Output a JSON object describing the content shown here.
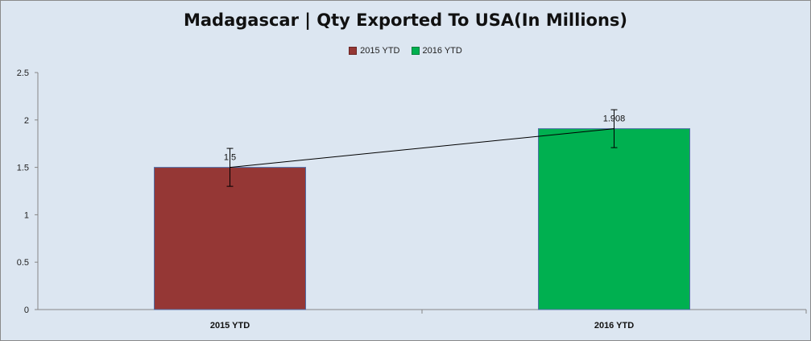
{
  "chart_data": {
    "type": "bar",
    "title": "Madagascar | Qty Exported To USA(In Millions)",
    "categories": [
      "2015 YTD",
      "2016 YTD"
    ],
    "values": [
      1.5,
      1.908
    ],
    "data_labels": [
      "1.5",
      "1.908"
    ],
    "colors": [
      "#953735",
      "#00b050"
    ],
    "error_bar_amount": 0.2,
    "trend_line": true,
    "ylim": [
      0,
      2.5
    ],
    "yticks": [
      0,
      0.5,
      1,
      1.5,
      2,
      2.5
    ],
    "ytick_labels": [
      "0",
      "0.5",
      "1",
      "1.5",
      "2",
      "2.5"
    ],
    "xlabel": "",
    "ylabel": "",
    "legend": {
      "position": "top",
      "entries": [
        "2015 YTD",
        "2016 YTD"
      ]
    },
    "grid": false
  }
}
